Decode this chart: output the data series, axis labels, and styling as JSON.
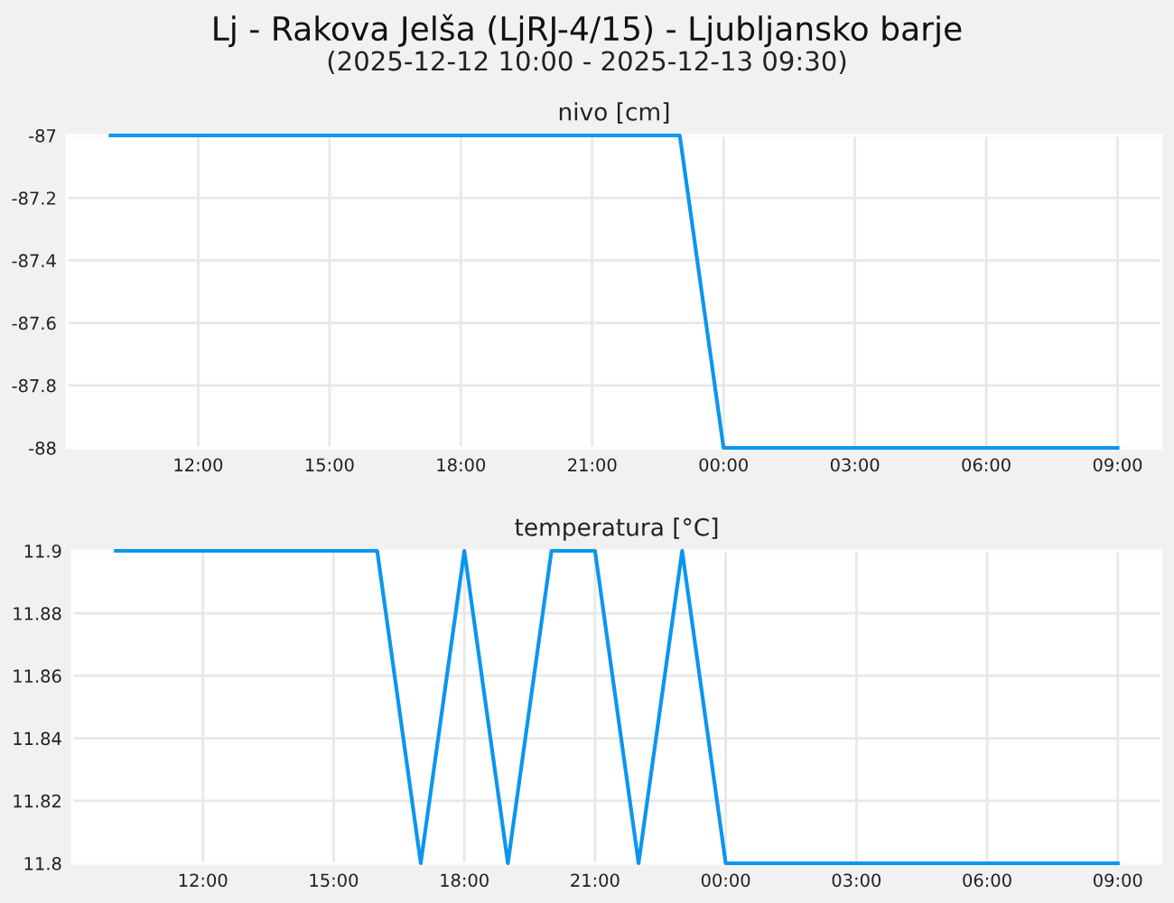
{
  "chart_data": [
    {
      "type": "line",
      "title": "Lj - Rakova Jelša (LjRJ-4/15) - Ljubljansko barje",
      "subtitle": "(2025-12-12 10:00 - 2025-12-13 09:30)",
      "ylabel": "nivo [cm]",
      "x": [
        "2025-12-12T10:00",
        "2025-12-12T23:00",
        "2025-12-13T00:00",
        "2025-12-13T09:00"
      ],
      "values": [
        -87,
        -87,
        -88,
        -88
      ],
      "color": "#0a96f0",
      "xlim": [
        "2025-12-12T09:00",
        "2025-12-13T10:00"
      ],
      "xticks": [
        {
          "value": "2025-12-12T12:00",
          "label": "12:00"
        },
        {
          "value": "2025-12-12T15:00",
          "label": "15:00"
        },
        {
          "value": "2025-12-12T18:00",
          "label": "18:00"
        },
        {
          "value": "2025-12-12T21:00",
          "label": "21:00"
        },
        {
          "value": "2025-12-13T00:00",
          "label": "00:00"
        },
        {
          "value": "2025-12-13T03:00",
          "label": "03:00"
        },
        {
          "value": "2025-12-13T06:00",
          "label": "06:00"
        },
        {
          "value": "2025-12-13T09:00",
          "label": "09:00"
        }
      ],
      "ylim": [
        -88,
        -87
      ],
      "yticks": [
        -88,
        -87.8,
        -87.6,
        -87.4,
        -87.2,
        -87
      ],
      "grid": true
    },
    {
      "type": "line",
      "ylabel": "temperatura [°C]",
      "x": [
        "2025-12-12T10:00",
        "2025-12-12T16:00",
        "2025-12-12T17:00",
        "2025-12-12T18:00",
        "2025-12-12T19:00",
        "2025-12-12T20:00",
        "2025-12-12T21:00",
        "2025-12-12T22:00",
        "2025-12-12T23:00",
        "2025-12-13T00:00",
        "2025-12-13T09:00"
      ],
      "values": [
        11.9,
        11.9,
        11.8,
        11.9,
        11.8,
        11.9,
        11.9,
        11.8,
        11.9,
        11.8,
        11.8
      ],
      "color": "#0a96f0",
      "xlim": [
        "2025-12-12T09:00",
        "2025-12-13T10:00"
      ],
      "xticks": [
        {
          "value": "2025-12-12T12:00",
          "label": "12:00"
        },
        {
          "value": "2025-12-12T15:00",
          "label": "15:00"
        },
        {
          "value": "2025-12-12T18:00",
          "label": "18:00"
        },
        {
          "value": "2025-12-12T21:00",
          "label": "21:00"
        },
        {
          "value": "2025-12-13T00:00",
          "label": "00:00"
        },
        {
          "value": "2025-12-13T03:00",
          "label": "03:00"
        },
        {
          "value": "2025-12-13T06:00",
          "label": "06:00"
        },
        {
          "value": "2025-12-13T09:00",
          "label": "09:00"
        }
      ],
      "ylim": [
        11.8,
        11.9
      ],
      "yticks": [
        11.8,
        11.82,
        11.84,
        11.86,
        11.88,
        11.9
      ],
      "grid": true
    }
  ]
}
